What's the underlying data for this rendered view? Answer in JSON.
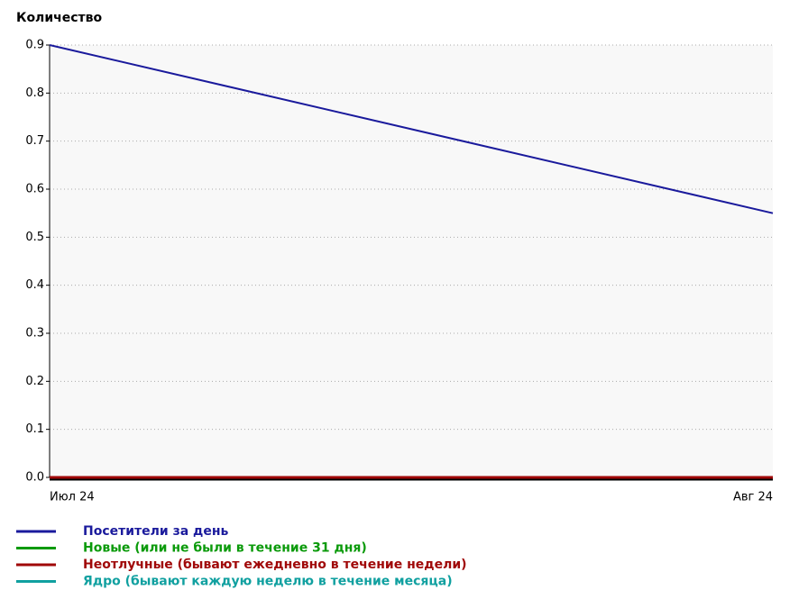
{
  "chart_data": {
    "type": "line",
    "y_label": "Количество",
    "categories": [
      "Июл 24",
      "Авг 24"
    ],
    "series": [
      {
        "name": "Посетители за день",
        "color": "#1a1a9c",
        "values": [
          0.9,
          0.55
        ]
      },
      {
        "name": "Новые (или не были в течение 31 дня)",
        "color": "#0a9a0a",
        "values": [
          0,
          0
        ]
      },
      {
        "name": "Неотлучные (бывают ежедневно в течение недели)",
        "color": "#a00808",
        "values": [
          0,
          0
        ]
      },
      {
        "name": "Ядро (бывают каждую неделю в течение месяца)",
        "color": "#10a0a0",
        "values": [
          0,
          0
        ]
      }
    ],
    "ylim": [
      0,
      0.9
    ],
    "yticks": [
      {
        "value": 0,
        "label": "0.0"
      },
      0.1,
      0.2,
      0.3,
      0.4,
      0.5,
      0.6,
      0.7,
      0.8,
      0.9
    ],
    "grid": true,
    "legend": "bottom"
  }
}
